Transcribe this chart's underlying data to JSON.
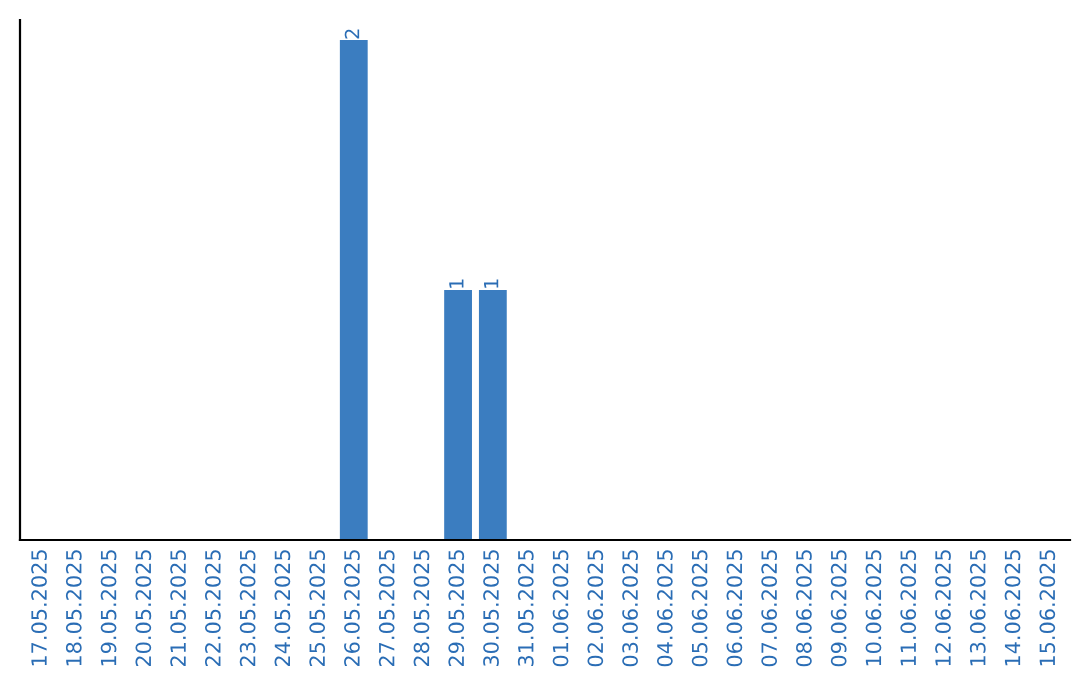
{
  "chart_data": {
    "type": "bar",
    "categories": [
      "17.05.2025",
      "18.05.2025",
      "19.05.2025",
      "20.05.2025",
      "21.05.2025",
      "22.05.2025",
      "23.05.2025",
      "24.05.2025",
      "25.05.2025",
      "26.05.2025",
      "27.05.2025",
      "28.05.2025",
      "29.05.2025",
      "30.05.2025",
      "31.05.2025",
      "01.06.2025",
      "02.06.2025",
      "03.06.2025",
      "04.06.2025",
      "05.06.2025",
      "06.06.2025",
      "07.06.2025",
      "08.06.2025",
      "09.06.2025",
      "10.06.2025",
      "11.06.2025",
      "12.06.2025",
      "13.06.2025",
      "14.06.2025",
      "15.06.2025"
    ],
    "values": [
      0,
      0,
      0,
      0,
      0,
      0,
      0,
      0,
      0,
      2,
      0,
      0,
      1,
      1,
      0,
      0,
      0,
      0,
      0,
      0,
      0,
      0,
      0,
      0,
      0,
      0,
      0,
      0,
      0,
      0
    ],
    "color": "#3b7dc0",
    "value_labels": [
      null,
      null,
      null,
      null,
      null,
      null,
      null,
      null,
      null,
      "2",
      null,
      null,
      "1",
      "1",
      null,
      null,
      null,
      null,
      null,
      null,
      null,
      null,
      null,
      null,
      null,
      null,
      null,
      null,
      null,
      null
    ],
    "tick_labels": "x",
    "grid": false,
    "legend": false
  }
}
